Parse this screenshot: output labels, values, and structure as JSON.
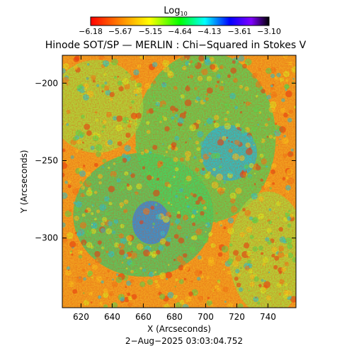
{
  "colorbar": {
    "title_base": "Log",
    "title_subscript": "10",
    "ticks": [
      "−6.18",
      "−5.67",
      "−5.15",
      "−4.64",
      "−4.13",
      "−3.61",
      "−3.10"
    ],
    "tick_values": [
      -6.18,
      -5.67,
      -5.15,
      -4.64,
      -4.13,
      -3.61,
      -3.1
    ],
    "range": [
      -6.18,
      -3.1
    ],
    "colormap": "rainbow (red low → orange → yellow → green → cyan → blue → violet → black high)",
    "colormap_stops": [
      "#ff0000",
      "#ff8000",
      "#ffff00",
      "#00ff00",
      "#00ffff",
      "#0000ff",
      "#8000ff",
      "#000000"
    ]
  },
  "title": "Hinode SOT/SP — MERLIN : Chi−Squared in Stokes V",
  "x_axis": {
    "label": "X (Arcseconds)",
    "ticks": [
      "620",
      "640",
      "660",
      "680",
      "700",
      "720",
      "740"
    ],
    "tick_values": [
      620,
      640,
      660,
      680,
      700,
      720,
      740
    ],
    "range": [
      608,
      758
    ]
  },
  "y_axis": {
    "label": "Y (Arcseconds)",
    "ticks": [
      "−200",
      "−250",
      "−300"
    ],
    "tick_values": [
      -200,
      -250,
      -300
    ],
    "range": [
      -345,
      -182
    ]
  },
  "timestamp": "2−Aug−2025 03:03:04.752",
  "image_map": {
    "dominant_colors": [
      "#e85a1e",
      "#f4c21a",
      "#d9e81a",
      "#3fdc4a",
      "#1fc8e0",
      "#2060f0"
    ],
    "description_hidden": true
  }
}
